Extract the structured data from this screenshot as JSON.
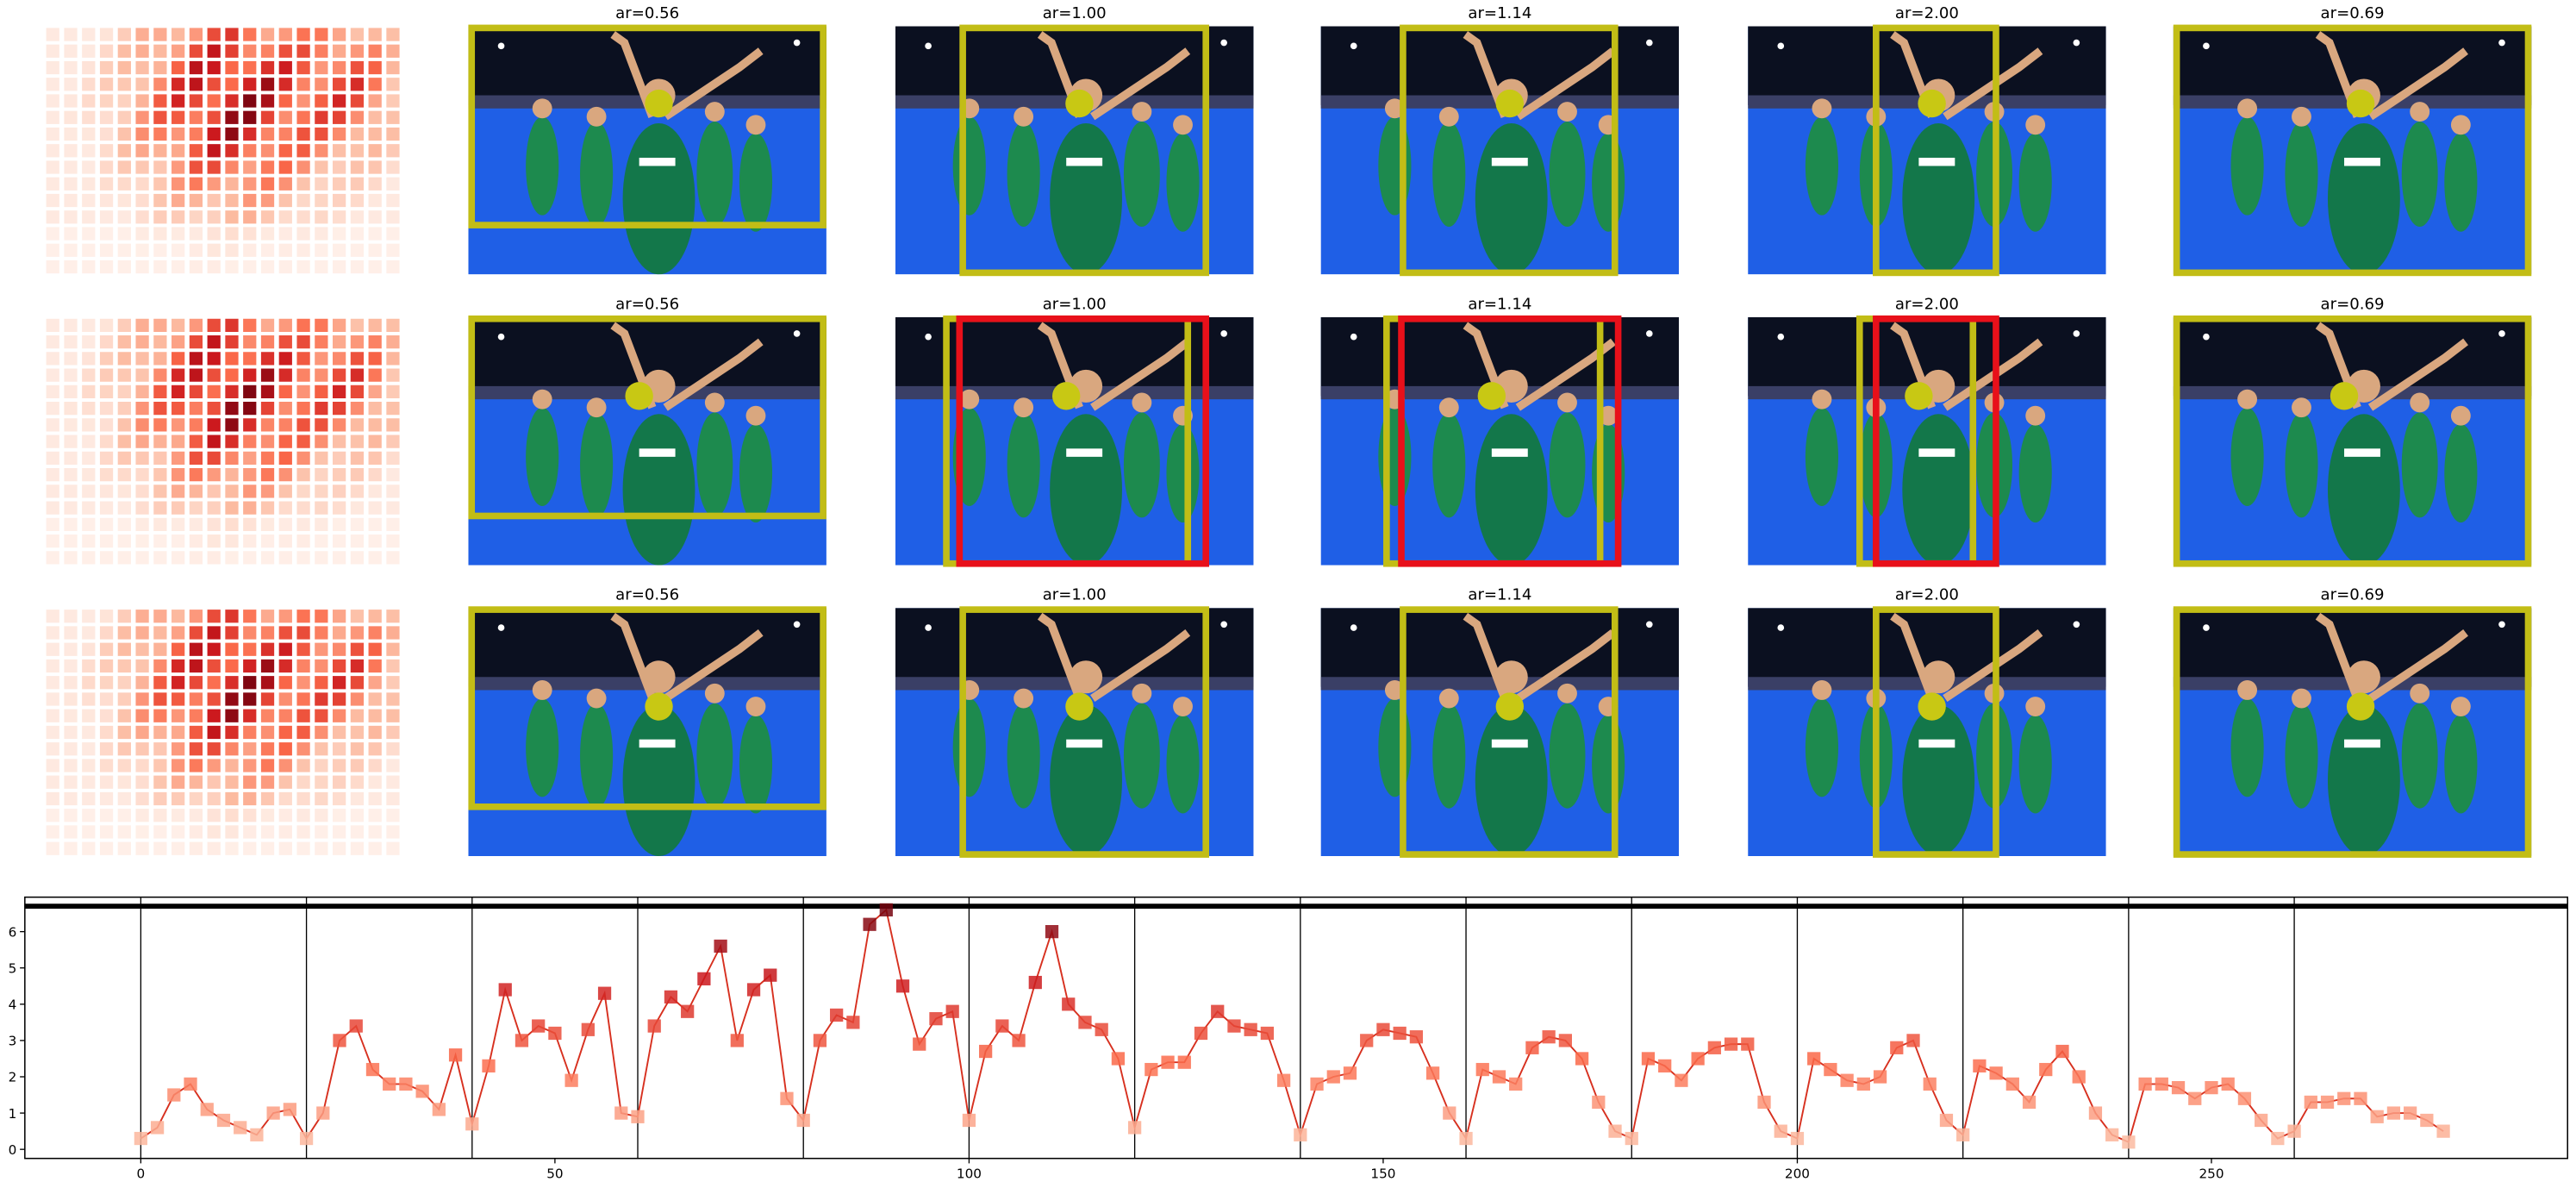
{
  "panels": {
    "rows": [
      {
        "titles": [
          "ar=0.56",
          "ar=1.00",
          "ar=1.14",
          "ar=2.00",
          "ar=0.69"
        ]
      },
      {
        "titles": [
          "ar=0.56",
          "ar=1.00",
          "ar=1.14",
          "ar=2.00",
          "ar=0.69"
        ]
      },
      {
        "titles": [
          "ar=0.56",
          "ar=1.00",
          "ar=1.14",
          "ar=2.00",
          "ar=0.69"
        ]
      }
    ]
  },
  "chart_data": {
    "type": "line",
    "x": [
      0,
      2,
      4,
      6,
      8,
      10,
      12,
      14,
      16,
      18,
      20,
      22,
      24,
      26,
      28,
      30,
      32,
      34,
      36,
      38,
      40,
      42,
      44,
      46,
      48,
      50,
      52,
      54,
      56,
      58,
      60,
      62,
      64,
      66,
      68,
      70,
      72,
      74,
      76,
      78,
      80,
      82,
      84,
      86,
      88,
      90,
      92,
      94,
      96,
      98,
      100,
      102,
      104,
      106,
      108,
      110,
      112,
      114,
      116,
      118,
      120,
      122,
      124,
      126,
      128,
      130,
      132,
      134,
      136,
      138,
      140,
      142,
      144,
      146,
      148,
      150,
      152,
      154,
      156,
      158,
      160,
      162,
      164,
      166,
      168,
      170,
      172,
      174,
      176,
      178,
      180,
      182,
      184,
      186,
      188,
      190,
      192,
      194,
      196,
      198,
      200,
      202,
      204,
      206,
      208,
      210,
      212,
      214,
      216,
      218,
      220,
      222,
      224,
      226,
      228,
      230,
      232,
      234,
      236,
      238,
      240,
      242,
      244,
      246,
      248,
      250,
      252,
      254,
      256,
      258,
      260,
      262,
      264,
      266,
      268,
      270,
      272,
      274,
      276,
      278
    ],
    "series": [
      {
        "color": "#d7301f",
        "values": [
          0.3,
          0.6,
          1.5,
          1.8,
          1.1,
          0.8,
          0.6,
          0.4,
          1.0,
          1.1,
          0.3,
          1.0,
          3.0,
          3.4,
          2.2,
          1.8,
          1.8,
          1.6,
          1.1,
          2.6,
          0.7,
          2.3,
          4.4,
          3.0,
          3.4,
          3.2,
          1.9,
          3.3,
          4.3,
          1.0,
          0.9,
          3.4,
          4.2,
          3.8,
          4.7,
          5.6,
          3.0,
          4.4,
          4.8,
          1.4,
          0.8,
          3.0,
          3.7,
          3.5,
          6.2,
          6.6,
          4.5,
          2.9,
          3.6,
          3.8,
          0.8,
          2.7,
          3.4,
          3.0,
          4.6,
          6.0,
          4.0,
          3.5,
          3.3,
          2.5,
          0.6,
          2.2,
          2.4,
          2.4,
          3.2,
          3.8,
          3.4,
          3.3,
          3.2,
          1.9,
          0.4,
          1.8,
          2.0,
          2.1,
          3.0,
          3.3,
          3.2,
          3.1,
          2.1,
          1.0,
          0.3,
          2.2,
          2.0,
          1.8,
          2.8,
          3.1,
          3.0,
          2.5,
          1.3,
          0.5,
          0.3,
          2.5,
          2.3,
          1.9,
          2.5,
          2.8,
          2.9,
          2.9,
          1.3,
          0.5,
          0.3,
          2.5,
          2.2,
          1.9,
          1.8,
          2.0,
          2.8,
          3.0,
          1.8,
          0.8,
          0.4,
          2.3,
          2.1,
          1.8,
          1.3,
          2.2,
          2.7,
          2.0,
          1.0,
          0.4,
          0.2,
          1.8,
          1.8,
          1.7,
          1.4,
          1.7,
          1.8,
          1.4,
          0.8,
          0.3,
          0.5,
          1.3,
          1.3,
          1.4,
          1.4,
          0.9,
          1.0,
          1.0,
          0.8,
          0.5
        ]
      }
    ],
    "xlim": [
      -14,
      293
    ],
    "ylim": [
      -0.25,
      6.95
    ],
    "xticks": [
      0,
      50,
      100,
      150,
      200,
      250
    ],
    "yticks": [
      0,
      1,
      2,
      3,
      4,
      5,
      6
    ],
    "vlines": [
      0,
      20,
      40,
      60,
      80,
      100,
      120,
      140,
      160,
      180,
      200,
      220,
      240,
      260
    ],
    "hline": 6.7
  }
}
